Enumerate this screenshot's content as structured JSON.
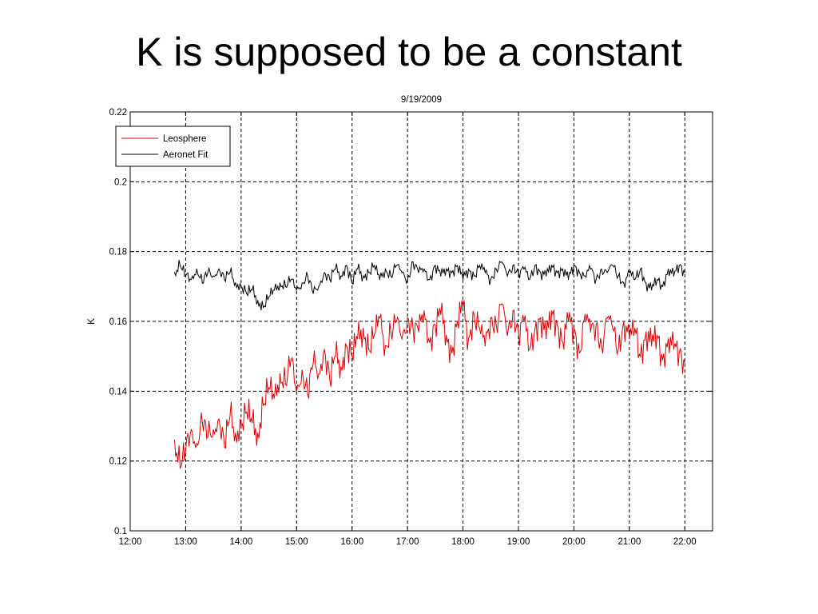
{
  "slide": {
    "title": "K is supposed to be a constant"
  },
  "chart_data": {
    "type": "line",
    "title": "9/19/2009",
    "xlabel": "",
    "ylabel": "K",
    "xlim": [
      12.0,
      22.5
    ],
    "ylim": [
      0.1,
      0.22
    ],
    "grid": true,
    "legend_position": "top-left",
    "x_ticks": [
      {
        "value": 12,
        "label": "12:00"
      },
      {
        "value": 13,
        "label": "13:00"
      },
      {
        "value": 14,
        "label": "14:00"
      },
      {
        "value": 15,
        "label": "15:00"
      },
      {
        "value": 16,
        "label": "16:00"
      },
      {
        "value": 17,
        "label": "17:00"
      },
      {
        "value": 18,
        "label": "18:00"
      },
      {
        "value": 19,
        "label": "19:00"
      },
      {
        "value": 20,
        "label": "20:00"
      },
      {
        "value": 21,
        "label": "21:00"
      },
      {
        "value": 22,
        "label": "22:00"
      }
    ],
    "y_ticks": [
      {
        "value": 0.1,
        "label": "0.1"
      },
      {
        "value": 0.12,
        "label": "0.12"
      },
      {
        "value": 0.14,
        "label": "0.14"
      },
      {
        "value": 0.16,
        "label": "0.16"
      },
      {
        "value": 0.18,
        "label": "0.18"
      },
      {
        "value": 0.2,
        "label": "0.2"
      },
      {
        "value": 0.22,
        "label": "0.22"
      }
    ],
    "series": [
      {
        "name": "Leosphere",
        "color": "#e00000",
        "x": [
          12.8,
          12.9,
          13.0,
          13.1,
          13.2,
          13.3,
          13.4,
          13.5,
          13.6,
          13.7,
          13.8,
          13.9,
          14.0,
          14.1,
          14.2,
          14.3,
          14.4,
          14.5,
          14.6,
          14.7,
          14.8,
          14.9,
          15.0,
          15.1,
          15.2,
          15.3,
          15.4,
          15.5,
          15.6,
          15.7,
          15.8,
          15.9,
          16.0,
          16.1,
          16.2,
          16.3,
          16.4,
          16.5,
          16.6,
          16.7,
          16.8,
          16.9,
          17.0,
          17.1,
          17.2,
          17.3,
          17.4,
          17.5,
          17.6,
          17.7,
          17.8,
          17.9,
          18.0,
          18.1,
          18.2,
          18.3,
          18.4,
          18.5,
          18.6,
          18.7,
          18.8,
          18.9,
          19.0,
          19.1,
          19.2,
          19.3,
          19.4,
          19.5,
          19.6,
          19.7,
          19.8,
          19.9,
          20.0,
          20.1,
          20.2,
          20.3,
          20.4,
          20.5,
          20.6,
          20.7,
          20.8,
          20.9,
          21.0,
          21.1,
          21.2,
          21.3,
          21.4,
          21.5,
          21.6,
          21.7,
          21.8,
          21.9,
          22.0
        ],
        "y": [
          0.126,
          0.118,
          0.123,
          0.129,
          0.125,
          0.131,
          0.127,
          0.129,
          0.132,
          0.124,
          0.133,
          0.128,
          0.13,
          0.134,
          0.131,
          0.128,
          0.136,
          0.141,
          0.138,
          0.145,
          0.142,
          0.149,
          0.14,
          0.146,
          0.139,
          0.148,
          0.145,
          0.152,
          0.143,
          0.15,
          0.147,
          0.153,
          0.15,
          0.155,
          0.158,
          0.152,
          0.156,
          0.161,
          0.153,
          0.157,
          0.16,
          0.155,
          0.161,
          0.158,
          0.157,
          0.163,
          0.154,
          0.159,
          0.162,
          0.156,
          0.151,
          0.16,
          0.164,
          0.155,
          0.162,
          0.158,
          0.153,
          0.161,
          0.159,
          0.165,
          0.156,
          0.163,
          0.157,
          0.16,
          0.152,
          0.158,
          0.161,
          0.155,
          0.163,
          0.159,
          0.154,
          0.16,
          0.158,
          0.151,
          0.162,
          0.157,
          0.159,
          0.153,
          0.161,
          0.158,
          0.152,
          0.16,
          0.155,
          0.158,
          0.15,
          0.157,
          0.153,
          0.156,
          0.149,
          0.155,
          0.152,
          0.151,
          0.148
        ]
      },
      {
        "name": "Aeronet Fit",
        "color": "#000000",
        "x": [
          12.8,
          12.9,
          13.0,
          13.1,
          13.2,
          13.3,
          13.4,
          13.5,
          13.6,
          13.7,
          13.8,
          13.9,
          14.0,
          14.1,
          14.2,
          14.3,
          14.4,
          14.5,
          14.6,
          14.7,
          14.8,
          14.9,
          15.0,
          15.1,
          15.2,
          15.3,
          15.4,
          15.5,
          15.6,
          15.7,
          15.8,
          15.9,
          16.0,
          16.1,
          16.2,
          16.3,
          16.4,
          16.5,
          16.6,
          16.7,
          16.8,
          16.9,
          17.0,
          17.1,
          17.2,
          17.3,
          17.4,
          17.5,
          17.6,
          17.7,
          17.8,
          17.9,
          18.0,
          18.1,
          18.2,
          18.3,
          18.4,
          18.5,
          18.6,
          18.7,
          18.8,
          18.9,
          19.0,
          19.1,
          19.2,
          19.3,
          19.4,
          19.5,
          19.6,
          19.7,
          19.8,
          19.9,
          20.0,
          20.1,
          20.2,
          20.3,
          20.4,
          20.5,
          20.6,
          20.7,
          20.8,
          20.9,
          21.0,
          21.1,
          21.2,
          21.3,
          21.4,
          21.5,
          21.6,
          21.7,
          21.8,
          21.9,
          22.0
        ],
        "y": [
          0.174,
          0.176,
          0.173,
          0.172,
          0.175,
          0.171,
          0.174,
          0.173,
          0.175,
          0.172,
          0.174,
          0.171,
          0.17,
          0.168,
          0.169,
          0.166,
          0.164,
          0.167,
          0.169,
          0.171,
          0.17,
          0.172,
          0.169,
          0.171,
          0.173,
          0.168,
          0.17,
          0.174,
          0.172,
          0.175,
          0.173,
          0.176,
          0.171,
          0.175,
          0.173,
          0.174,
          0.176,
          0.172,
          0.175,
          0.173,
          0.176,
          0.174,
          0.172,
          0.177,
          0.174,
          0.175,
          0.172,
          0.176,
          0.173,
          0.175,
          0.174,
          0.176,
          0.172,
          0.175,
          0.173,
          0.176,
          0.174,
          0.172,
          0.175,
          0.177,
          0.173,
          0.176,
          0.174,
          0.175,
          0.172,
          0.176,
          0.174,
          0.173,
          0.176,
          0.174,
          0.175,
          0.172,
          0.176,
          0.174,
          0.173,
          0.175,
          0.172,
          0.175,
          0.174,
          0.176,
          0.173,
          0.171,
          0.174,
          0.172,
          0.175,
          0.171,
          0.169,
          0.172,
          0.17,
          0.175,
          0.173,
          0.176,
          0.174
        ]
      }
    ]
  }
}
